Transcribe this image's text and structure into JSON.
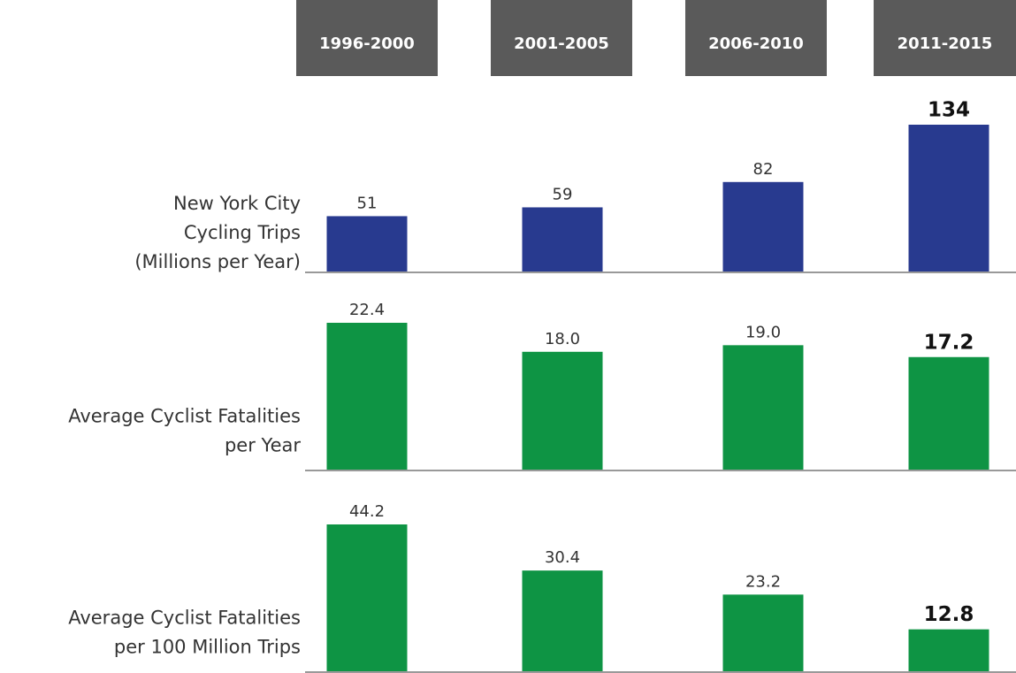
{
  "chart_data": [
    {
      "type": "bar",
      "title": "New York City Cycling Trips (Millions per Year)",
      "title_lines": [
        "New York City",
        "Cycling Trips",
        "(Millions per Year)"
      ],
      "categories": [
        "1996-2000",
        "2001-2005",
        "2006-2010",
        "2011-2015"
      ],
      "values": [
        51,
        59,
        82,
        134
      ],
      "color": "#283a8f",
      "highlight": 3
    },
    {
      "type": "bar",
      "title_lines": [
        "Average Cyclist Fatalities",
        "per Year"
      ],
      "values": [
        22.4,
        18.0,
        19.0,
        17.2
      ],
      "value_labels": [
        "22.4",
        "18.0",
        "19.0",
        "17.2"
      ],
      "color": "#0e9444",
      "highlight": 3
    },
    {
      "type": "bar",
      "title_lines": [
        "Average Cyclist Fatalities",
        "per 100 Million Trips"
      ],
      "values": [
        44.2,
        30.4,
        23.2,
        12.8
      ],
      "value_labels": [
        "44.2",
        "30.4",
        "23.2",
        "12.8"
      ],
      "color": "#0e9444",
      "highlight": 3
    }
  ]
}
